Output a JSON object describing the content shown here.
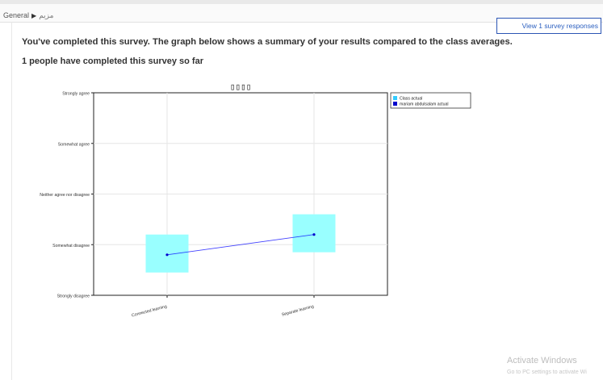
{
  "breadcrumb": {
    "items": [
      "General",
      "مزيم"
    ]
  },
  "actions": {
    "view_responses": "View 1 survey responses"
  },
  "main": {
    "summary": "You've completed this survey. The graph below shows a summary of your results compared to the class averages.",
    "count_text": "1 people have completed this survey so far"
  },
  "chart_data": {
    "type": "line",
    "title": "▯▯▯▯",
    "categories": [
      "Connected learning",
      "Separate learning"
    ],
    "y_tick_labels": [
      "Strongly disagree",
      "Somewhat disagree",
      "Neither agree nor disagree",
      "Somewhat agree",
      "Strongly agree"
    ],
    "ylim": [
      1,
      5
    ],
    "grid": true,
    "legend_position": "top-right",
    "series": [
      {
        "name": "Class actual",
        "type": "box",
        "color": "#99ffff",
        "values": [
          1.85,
          2.25
        ],
        "low": [
          1.45,
          1.85
        ],
        "high": [
          2.2,
          2.6
        ]
      },
      {
        "name": "mariam abdulsalam actual",
        "type": "line",
        "color": "#0000ff",
        "values": [
          1.8,
          2.2
        ]
      }
    ]
  },
  "watermark": {
    "line1": "Activate Windows",
    "line2": "Go to PC settings to activate Wi"
  }
}
